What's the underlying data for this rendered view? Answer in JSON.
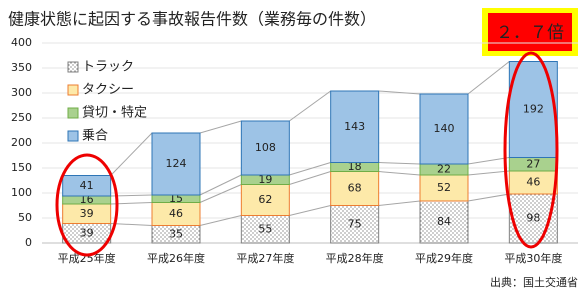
{
  "chart_data": {
    "type": "stacked_bar",
    "title": "健康状態に起因する事故報告件数（業務毎の件数）",
    "annotation": "２．７倍",
    "source": "出典：国土交通省",
    "categories": [
      "平成25年度",
      "平成26年度",
      "平成27年度",
      "平成28年度",
      "平成29年度",
      "平成30年度"
    ],
    "series": [
      {
        "name": "トラック",
        "color": "#ffffff",
        "pattern": "dots",
        "values": [
          39,
          35,
          55,
          75,
          84,
          98
        ]
      },
      {
        "name": "タクシー",
        "color": "#fde9a9",
        "values": [
          39,
          46,
          62,
          68,
          52,
          46
        ]
      },
      {
        "name": "貸切・特定",
        "color": "#a9d18e",
        "values": [
          16,
          15,
          19,
          18,
          22,
          27
        ]
      },
      {
        "name": "乗合",
        "color": "#9dc3e6",
        "values": [
          41,
          124,
          108,
          143,
          140,
          192
        ]
      }
    ],
    "ylim": [
      0,
      400
    ],
    "yticks": [
      0,
      50,
      100,
      150,
      200,
      250,
      300,
      350,
      400
    ],
    "grid": true
  }
}
